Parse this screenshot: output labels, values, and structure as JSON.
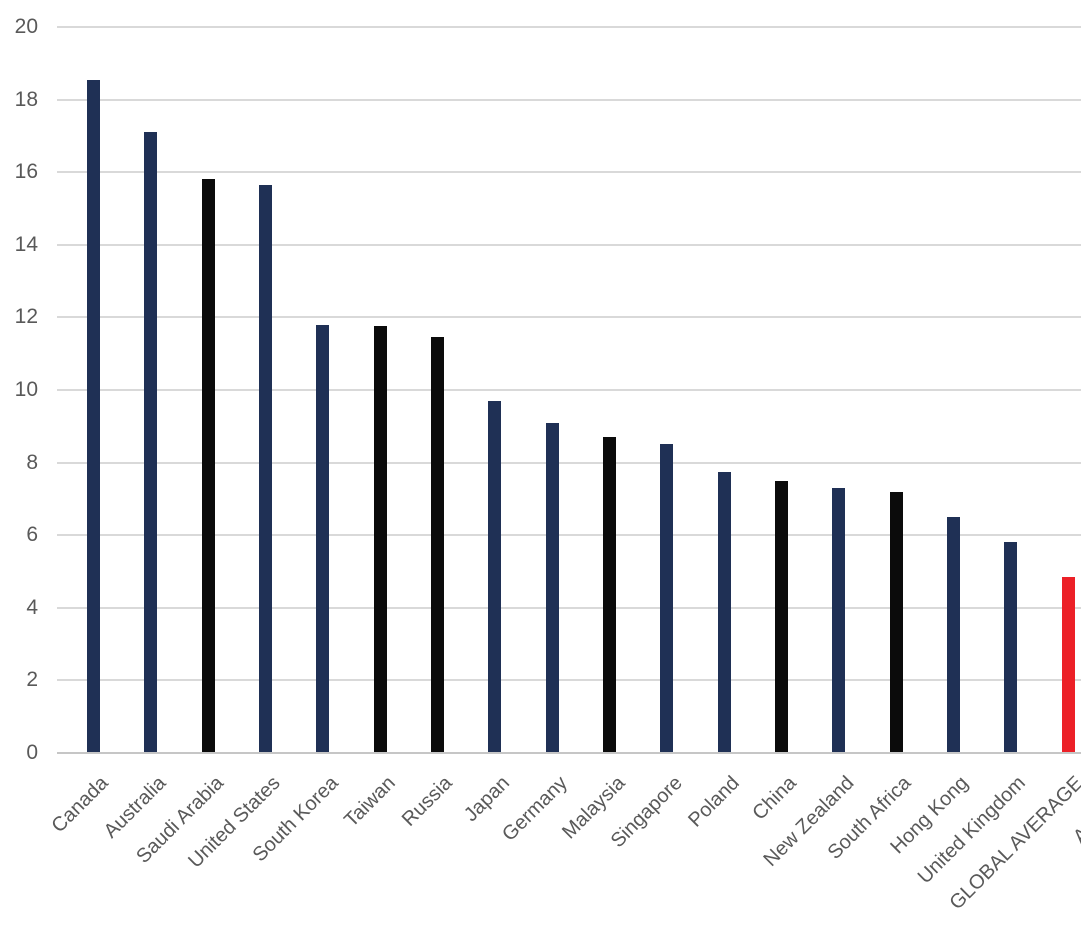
{
  "chart_data": {
    "type": "bar",
    "title": "",
    "xlabel": "",
    "ylabel": "",
    "categories": [
      "Canada",
      "Australia",
      "Saudi Arabia",
      "United States",
      "South Korea",
      "Taiwan",
      "Russia",
      "Japan",
      "Germany",
      "Malaysia",
      "Singapore",
      "Poland",
      "China",
      "New Zealand",
      "South Africa",
      "Hong Kong",
      "United Kingdom",
      "GLOBAL AVERAGE",
      "Argentina"
    ],
    "values": [
      18.55,
      17.1,
      15.8,
      15.65,
      11.8,
      11.75,
      11.45,
      9.7,
      9.1,
      8.7,
      8.5,
      7.75,
      7.5,
      7.3,
      7.2,
      6.5,
      5.8,
      4.85,
      null
    ],
    "bar_color_keys": [
      "navy",
      "navy",
      "black",
      "navy",
      "navy",
      "black",
      "black",
      "navy",
      "navy",
      "black",
      "navy",
      "navy",
      "black",
      "navy",
      "black",
      "navy",
      "navy",
      "red",
      "navy"
    ],
    "palette": {
      "navy": "#1F3055",
      "black": "#0B0B0B",
      "red": "#EC2027"
    },
    "highlight_category": "GLOBAL AVERAGE",
    "highlight_color": "#EC2027",
    "ylim": [
      0,
      20
    ],
    "ytick_interval": 2,
    "yticks": [
      0,
      2,
      4,
      6,
      8,
      10,
      12,
      14,
      16,
      18,
      20
    ],
    "grid": true,
    "gridline_color": "#D9D9D9",
    "axis_line_color": "#C6C6C6",
    "tick_label_color": "#595959",
    "legend_position": "none",
    "clipped_note": "Rightmost category label is cut off at image edge, showing only 'Arge'"
  }
}
